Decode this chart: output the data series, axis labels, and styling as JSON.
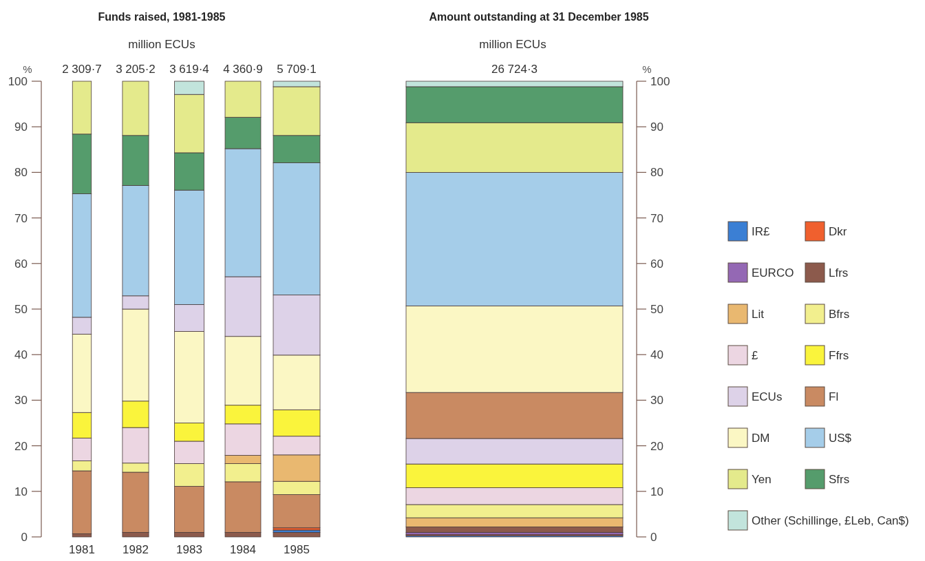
{
  "chart_data": [
    {
      "type": "bar",
      "title": "Funds raised, 1981-1985",
      "subtitle": "million ECUs",
      "ylabel": "%",
      "stacked": true,
      "categories": [
        "1981",
        "1982",
        "1983",
        "1984",
        "1985"
      ],
      "totals": [
        "2 309·7",
        "3 205·2",
        "3 619·4",
        "4 360·9",
        "5 709·1"
      ],
      "ylim": [
        0,
        100
      ],
      "yticks": [
        0,
        10,
        20,
        30,
        40,
        50,
        60,
        70,
        80,
        90,
        100
      ],
      "series": [
        {
          "color": "#8c5a4c",
          "values": [
            0.7,
            1.0,
            1.0,
            1.0,
            1.0
          ]
        },
        {
          "color": "#3b7fd4",
          "values": [
            null,
            null,
            null,
            null,
            0.5
          ]
        },
        {
          "color": "#f0602e",
          "values": [
            null,
            null,
            null,
            null,
            0.5
          ]
        },
        {
          "color": "#c98a62",
          "values": [
            13.8,
            13.2,
            10.1,
            11.1,
            7.3
          ]
        },
        {
          "color": "#f2ef8e",
          "values": [
            2.2,
            2.0,
            5.0,
            4.0,
            2.9
          ]
        },
        {
          "color": "#e9b870",
          "values": [
            null,
            null,
            null,
            1.8,
            5.8
          ]
        },
        {
          "color": "#ecd6e2",
          "values": [
            5.0,
            7.8,
            4.9,
            6.9,
            4.1
          ]
        },
        {
          "color": "#faf43c",
          "values": [
            5.6,
            5.8,
            4.0,
            4.1,
            5.8
          ]
        },
        {
          "color": "#fbf7c4",
          "values": [
            17.2,
            20.2,
            20.1,
            15.1,
            12.0
          ]
        },
        {
          "color": "#ddd2e8",
          "values": [
            3.7,
            2.9,
            5.9,
            13.1,
            13.2
          ]
        },
        {
          "color": "#a5cde9",
          "values": [
            27.1,
            24.2,
            25.1,
            28.1,
            29.0
          ]
        },
        {
          "color": "#559c6c",
          "values": [
            13.1,
            11.0,
            8.2,
            6.9,
            6.0
          ]
        },
        {
          "color": "#e4ea8c",
          "values": [
            11.6,
            11.9,
            12.8,
            7.9,
            10.7
          ]
        },
        {
          "color": "#c2e4dc",
          "values": [
            null,
            null,
            2.9,
            null,
            1.2
          ]
        }
      ]
    },
    {
      "type": "bar",
      "title": "Amount outstanding at 31 December 1985",
      "subtitle": "million ECUs",
      "ylabel": "%",
      "stacked": true,
      "categories": [
        null
      ],
      "totals": [
        "26 724·3"
      ],
      "ylim": [
        0,
        100
      ],
      "yticks": [
        0,
        10,
        20,
        30,
        40,
        50,
        60,
        70,
        80,
        90,
        100
      ],
      "legend": "right",
      "series": [
        {
          "name": "IR£",
          "color": "#3b7fd4",
          "values": [
            0.3
          ]
        },
        {
          "name": "Dkr",
          "color": "#f0602e",
          "values": [
            0.2
          ]
        },
        {
          "name": "EURCO",
          "color": "#9468b4",
          "values": [
            0.5
          ]
        },
        {
          "name": "Lfrs",
          "color": "#8c5a4c",
          "values": [
            1.2
          ]
        },
        {
          "name": "Lit",
          "color": "#e9b870",
          "values": [
            2.0
          ]
        },
        {
          "name": "Bfrs",
          "color": "#f2ef8e",
          "values": [
            2.9
          ]
        },
        {
          "name": "£",
          "color": "#ecd6e2",
          "values": [
            3.7
          ]
        },
        {
          "name": "Ffrs",
          "color": "#faf43c",
          "values": [
            5.2
          ]
        },
        {
          "name": "ECUs",
          "color": "#ddd2e8",
          "values": [
            5.6
          ]
        },
        {
          "name": "Fl",
          "color": "#c98a62",
          "values": [
            10.1
          ]
        },
        {
          "name": "DM",
          "color": "#fbf7c4",
          "values": [
            19.0
          ]
        },
        {
          "name": "US$",
          "color": "#a5cde9",
          "values": [
            29.3
          ]
        },
        {
          "name": "Yen",
          "color": "#e4ea8c",
          "values": [
            10.9
          ]
        },
        {
          "name": "Sfrs",
          "color": "#559c6c",
          "values": [
            7.9
          ]
        },
        {
          "name": "Other (Schillinge, £Leb, Can$)",
          "color": "#c2e4dc",
          "values": [
            1.2
          ]
        }
      ]
    }
  ]
}
